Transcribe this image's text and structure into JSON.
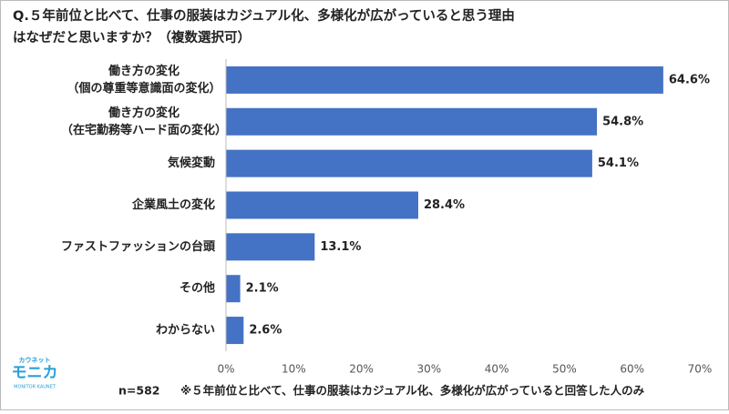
{
  "chart_data": {
    "type": "hbar",
    "title": [
      "Q.５年前位と比べて、仕事の服装はカジュアル化、多様化が広がっていると思う理由",
      "はなぜだと思いますか？（複数選択可）"
    ],
    "categories": [
      [
        "働き方の変化",
        "（個の尊重等意識面の変化）"
      ],
      [
        "働き方の変化",
        "（在宅勤務等ハード面の変化）"
      ],
      [
        "気候変動"
      ],
      [
        "企業風土の変化"
      ],
      [
        "ファストファッションの台頭"
      ],
      [
        "その他"
      ],
      [
        "わからない"
      ]
    ],
    "values": [
      64.6,
      54.8,
      54.1,
      28.4,
      13.1,
      2.1,
      2.6
    ],
    "value_labels": [
      "64.6%",
      "54.8%",
      "54.1%",
      "28.4%",
      "13.1%",
      "2.1%",
      "2.6%"
    ],
    "color": "#4472c4",
    "xlim": [
      0,
      70
    ],
    "xticks": [
      {
        "value": 0,
        "label": "0%"
      },
      {
        "value": 10,
        "label": "10%"
      },
      {
        "value": 20,
        "label": "20%"
      },
      {
        "value": 30,
        "label": "30%"
      },
      {
        "value": 40,
        "label": "40%"
      },
      {
        "value": 50,
        "label": "50%"
      },
      {
        "value": 60,
        "label": "60%"
      },
      {
        "value": 70,
        "label": "70%"
      }
    ],
    "sample": "n=582",
    "note": "※５年前位と比べて、仕事の服装はカジュアル化、多様化が広がっていると回答した人のみ",
    "logo": {
      "top": "カウネット",
      "main": "モニカ",
      "bottom": "MONITOR KAUNET"
    }
  }
}
